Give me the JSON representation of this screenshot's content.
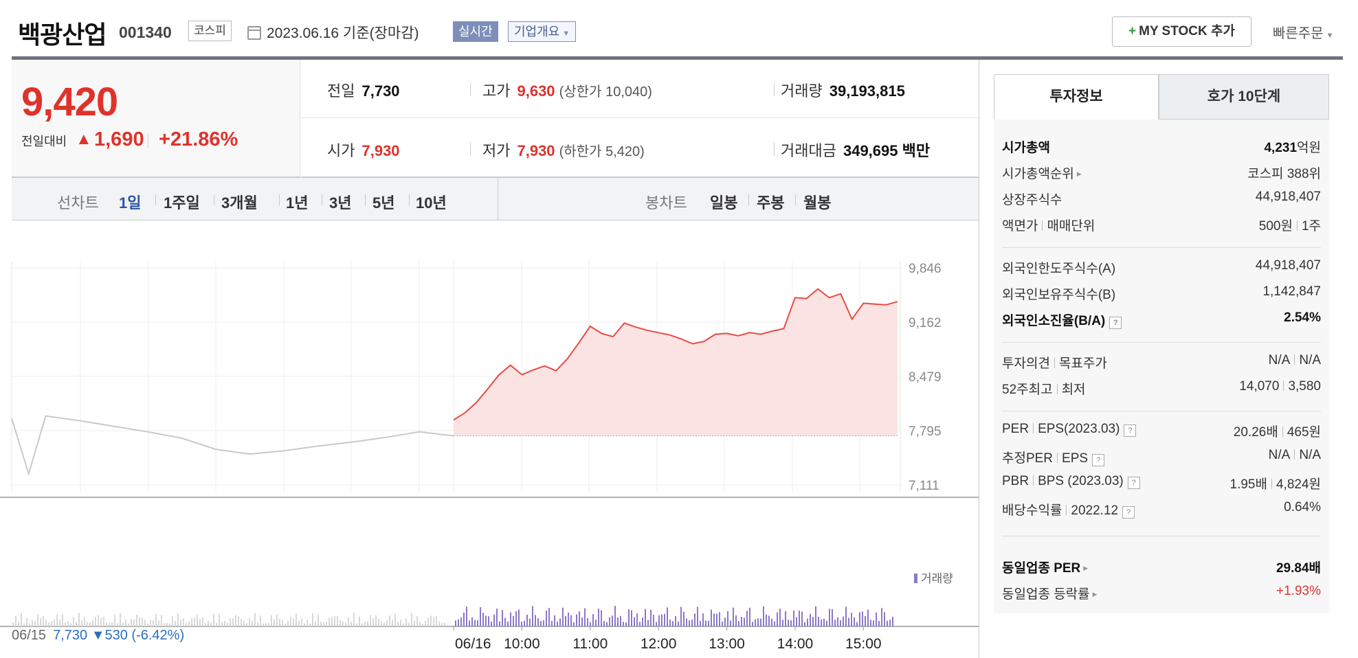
{
  "header": {
    "stock_name": "백광산업",
    "stock_code": "001340",
    "market": "코스피",
    "date_text": "2023.06.16  기준(장마감)",
    "realtime_label": "실시간",
    "company_label": "기업개요",
    "mystock_label": "MY STOCK 추가",
    "quick_order_label": "빠른주문"
  },
  "price": {
    "current": "9,420",
    "change_label": "전일대비",
    "change_value": "1,690",
    "change_pct": "+21.86%"
  },
  "info": {
    "prev_label": "전일",
    "prev_value": "7,730",
    "high_label": "고가",
    "high_value": "9,630",
    "upper_label": "(상한가 10,040)",
    "volume_label": "거래량",
    "volume_value": "39,193,815",
    "open_label": "시가",
    "open_value": "7,930",
    "low_label": "저가",
    "low_value": "7,930",
    "lower_label": "(하한가 5,420)",
    "amount_label": "거래대금",
    "amount_value": "349,695",
    "amount_unit": "백만"
  },
  "tabs": {
    "line_label": "선차트",
    "line_periods": [
      "1일",
      "1주일",
      "3개월",
      "1년",
      "3년",
      "5년",
      "10년"
    ],
    "candle_label": "봉차트",
    "candle_periods": [
      "일봉",
      "주봉",
      "월봉"
    ]
  },
  "chart_data": {
    "type": "line",
    "y_ticks": [
      "9,846",
      "9,162",
      "8,479",
      "7,795",
      "7,111"
    ],
    "ylim": [
      7111,
      9846
    ],
    "x_labels": [
      "06/16",
      "10:00",
      "11:00",
      "12:00",
      "13:00",
      "14:00",
      "15:00"
    ],
    "baseline": 7730,
    "volume_legend": "거래량",
    "series": [
      {
        "day": "06/15",
        "x": [
          "09:00",
          "09:15",
          "09:30",
          "10:00",
          "10:30",
          "11:00",
          "11:30",
          "12:00",
          "12:30",
          "13:00",
          "13:30",
          "14:00",
          "14:30",
          "15:00",
          "15:30"
        ],
        "values": [
          7950,
          7250,
          7980,
          7920,
          7850,
          7780,
          7700,
          7560,
          7500,
          7540,
          7600,
          7650,
          7710,
          7780,
          7730
        ]
      },
      {
        "day": "06/16",
        "x": [
          "09:00",
          "09:10",
          "09:20",
          "09:30",
          "09:40",
          "09:50",
          "10:00",
          "10:10",
          "10:20",
          "10:30",
          "10:40",
          "10:50",
          "11:00",
          "11:10",
          "11:20",
          "11:30",
          "11:40",
          "11:50",
          "12:00",
          "12:10",
          "12:20",
          "12:30",
          "12:40",
          "12:50",
          "13:00",
          "13:10",
          "13:20",
          "13:30",
          "13:40",
          "13:50",
          "14:00",
          "14:10",
          "14:20",
          "14:30",
          "14:40",
          "14:50",
          "15:00",
          "15:10",
          "15:20",
          "15:30"
        ],
        "values": [
          7930,
          8020,
          8150,
          8320,
          8500,
          8620,
          8500,
          8560,
          8610,
          8550,
          8700,
          8900,
          9110,
          9020,
          8980,
          9150,
          9100,
          9060,
          9030,
          9000,
          8950,
          8890,
          8920,
          9010,
          9020,
          8990,
          9030,
          9010,
          9050,
          9080,
          9470,
          9460,
          9580,
          9470,
          9520,
          9200,
          9400,
          9390,
          9380,
          9420
        ]
      }
    ],
    "prev_day_summary": {
      "date": "06/15",
      "close": "7,730",
      "arrow": "▼",
      "change": "530",
      "pct": "(-6.42%)"
    }
  },
  "right_panel": {
    "tab_active": "투자정보",
    "tab_inactive": "호가 10단계",
    "market_cap_label": "시가총액",
    "market_cap_value": "4,231",
    "market_cap_unit": "억원",
    "rank_label": "시가총액순위",
    "rank_value": "코스피 388위",
    "shares_label": "상장주식수",
    "shares_value": "44,918,407",
    "par_label": "액면가",
    "unit_label": "매매단위",
    "par_value": "500원",
    "unit_value": "1주",
    "foreign_limit_label": "외국인한도주식수(A)",
    "foreign_limit_value": "44,918,407",
    "foreign_hold_label": "외국인보유주식수(B)",
    "foreign_hold_value": "1,142,847",
    "foreign_ratio_label": "외국인소진율(B/A)",
    "foreign_ratio_value": "2.54%",
    "opinion_label": "투자의견",
    "target_label": "목표주가",
    "opinion_value": "N/A",
    "target_value": "N/A",
    "high52_label": "52주최고",
    "low52_label": "최저",
    "high52_value": "14,070",
    "low52_value": "3,580",
    "per_label": "PER",
    "eps_label": "EPS(2023.03)",
    "per_value": "20.26배",
    "eps_value": "465원",
    "est_per_label": "추정PER",
    "est_eps_label": "EPS",
    "est_per_value": "N/A",
    "est_eps_value": "N/A",
    "pbr_label": "PBR",
    "bps_label": "BPS (2023.03)",
    "pbr_value": "1.95배",
    "bps_value": "4,824원",
    "div_label": "배당수익률",
    "div_year": "2022.12",
    "div_value": "0.64%",
    "sector_per_label": "동일업종 PER",
    "sector_per_value": "29.84배",
    "sector_change_label": "동일업종 등락률",
    "sector_change_value": "+1.93%"
  }
}
